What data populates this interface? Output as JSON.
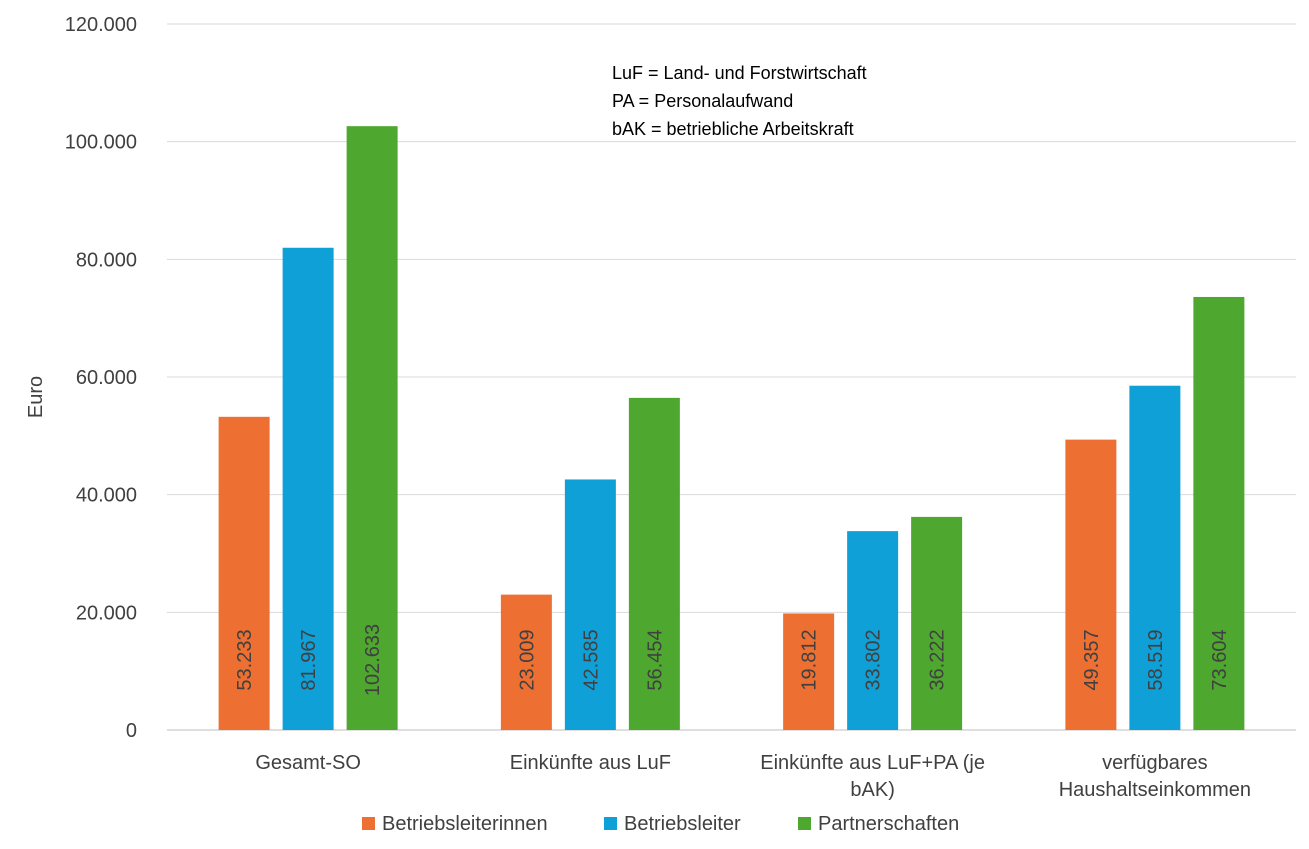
{
  "chart_data": {
    "type": "bar",
    "ylabel": "Euro",
    "ylim": [
      0,
      120000
    ],
    "yticks": [
      0,
      20000,
      40000,
      60000,
      80000,
      100000,
      120000
    ],
    "ytick_labels": [
      "0",
      "20.000",
      "40.000",
      "60.000",
      "80.000",
      "100.000",
      "120.000"
    ],
    "grid": true,
    "legend_position": "bottom",
    "categories": [
      [
        "Gesamt-SO"
      ],
      [
        "Einkünfte aus LuF"
      ],
      [
        "Einkünfte aus LuF+PA (je",
        "bAK)"
      ],
      [
        "verfügbares",
        "Haushaltseinkommen"
      ]
    ],
    "series": [
      {
        "name": "Betriebsleiterinnen",
        "color": "#ED7032",
        "values": [
          53233,
          23009,
          19812,
          49357
        ],
        "labels": [
          "53.233",
          "23.009",
          "19.812",
          "49.357"
        ]
      },
      {
        "name": "Betriebsleiter",
        "color": "#10A0D8",
        "values": [
          81967,
          42585,
          33802,
          58519
        ],
        "labels": [
          "81.967",
          "42.585",
          "33.802",
          "58.519"
        ]
      },
      {
        "name": "Partnerschaften",
        "color": "#4EA72E",
        "values": [
          102633,
          56454,
          36222,
          73604
        ],
        "labels": [
          "102.633",
          "56.454",
          "36.222",
          "73.604"
        ]
      }
    ],
    "annotations": [
      "LuF = Land- und Forstwirtschaft",
      "PA = Personalaufwand",
      "bAK = betriebliche Arbeitskraft"
    ]
  }
}
